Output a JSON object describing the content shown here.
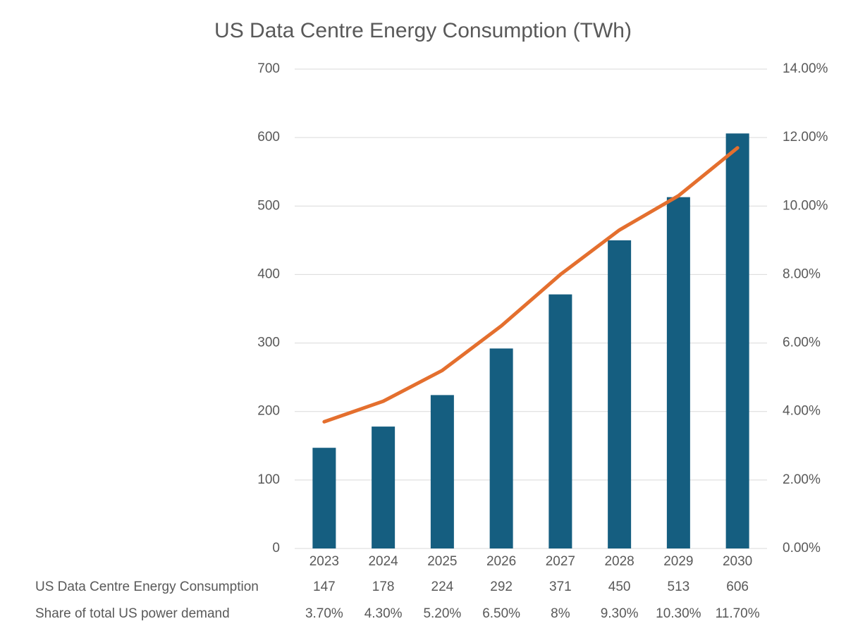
{
  "chart_data": {
    "type": "bar_line",
    "title": "US Data Centre Energy Consumption (TWh)",
    "categories": [
      "2023",
      "2024",
      "2025",
      "2026",
      "2027",
      "2028",
      "2029",
      "2030"
    ],
    "series": [
      {
        "name": "US Data Centre Energy Consumption",
        "type": "bar",
        "color": "#155e80",
        "values": [
          147,
          178,
          224,
          292,
          371,
          450,
          513,
          606
        ]
      },
      {
        "name": "Share of total US power demand",
        "type": "line",
        "axis": "y2",
        "color": "#e46f2e",
        "values": [
          3.7,
          4.3,
          5.2,
          6.5,
          8,
          9.3,
          10.3,
          11.7
        ],
        "value_labels": [
          "3.70%",
          "4.30%",
          "5.20%",
          "6.50%",
          "8%",
          "9.30%",
          "10.30%",
          "11.70%"
        ]
      }
    ],
    "ylim": [
      0,
      700
    ],
    "yticks": [
      0,
      100,
      200,
      300,
      400,
      500,
      600,
      700
    ],
    "y2lim": [
      0,
      14
    ],
    "y2ticks": [
      {
        "value": 0,
        "label": "0.00%"
      },
      {
        "value": 2,
        "label": "2.00%"
      },
      {
        "value": 4,
        "label": "4.00%"
      },
      {
        "value": 6,
        "label": "6.00%"
      },
      {
        "value": 8,
        "label": "8.00%"
      },
      {
        "value": 10,
        "label": "10.00%"
      },
      {
        "value": 12,
        "label": "12.00%"
      },
      {
        "value": 14,
        "label": "14.00%"
      }
    ],
    "grid": true
  }
}
